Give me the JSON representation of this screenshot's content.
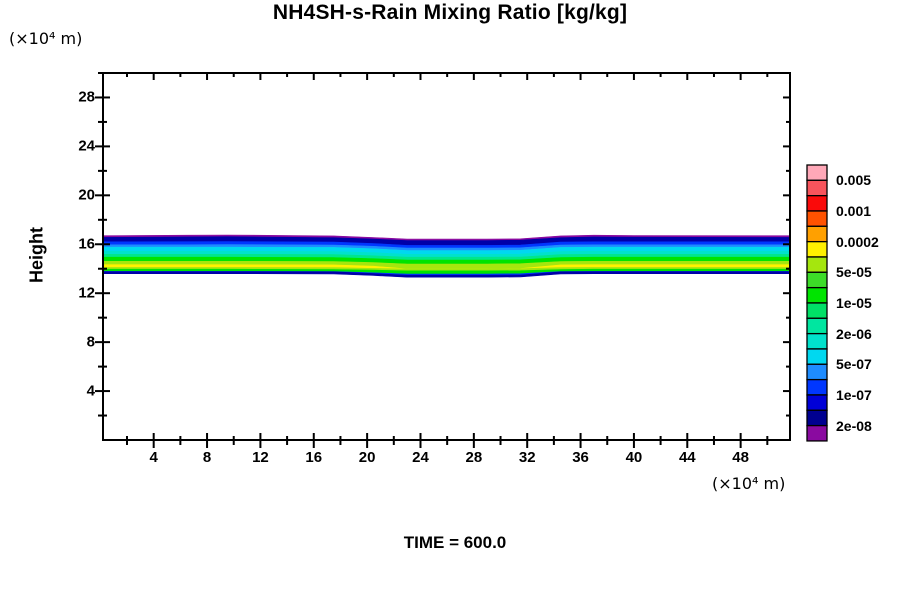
{
  "chart_data": {
    "type": "filled-contour",
    "title": "NH4SH-s-Rain Mixing Ratio [kg/kg]",
    "ylabel": "Height",
    "y_axis_unit": "(×10⁴ m)",
    "x_axis_unit": "(×10⁴ m)",
    "time_label": "TIME = 600.0",
    "xlim": [
      0.2,
      51.7
    ],
    "ylim": [
      0,
      30
    ],
    "xticks": [
      4,
      8,
      12,
      16,
      20,
      24,
      28,
      32,
      36,
      40,
      44,
      48
    ],
    "xticks_minor": [
      2,
      6,
      10,
      14,
      18,
      22,
      26,
      30,
      34,
      38,
      42,
      46,
      50
    ],
    "yticks": [
      4,
      8,
      12,
      16,
      20,
      24,
      28
    ],
    "yticks_minor": [
      2,
      6,
      10,
      14,
      18,
      22,
      26,
      30
    ],
    "grid": false,
    "frame_color": "#000000",
    "colorbar": {
      "position": "right",
      "segment_colors_top_to_bottom": [
        "#FFA8B8",
        "#F8545C",
        "#FA0A0A",
        "#FF5200",
        "#FFA000",
        "#FFF000",
        "#A5E60E",
        "#3CDC28",
        "#00E400",
        "#00E066",
        "#00E6A0",
        "#00E2CC",
        "#00D8F0",
        "#1E8CFF",
        "#0037FF",
        "#0000D7",
        "#000090",
        "#8A0AA0"
      ],
      "boundary_labels_top_to_bottom": [
        "0.005",
        "0.001",
        "0.0002",
        "5e-05",
        "1e-05",
        "2e-06",
        "5e-07",
        "1e-07",
        "2e-08"
      ],
      "label_after_segment": [
        1,
        3,
        5,
        7,
        9,
        11,
        13,
        15,
        17
      ]
    },
    "band": {
      "description": "horizontal rain layer between heights ~13.3 and ~16.8 (x10^4 m) with slight downward dip near x=20-32",
      "x_stations": [
        0.2,
        6.5,
        9.5,
        17.5,
        20.5,
        23,
        29,
        31.5,
        34.5,
        37,
        40,
        51.7
      ],
      "stripes_top_to_bottom": [
        {
          "name": "purple-top-line",
          "color": "#8A0AA0",
          "top": [
            16.7,
            16.74,
            16.76,
            16.68,
            16.55,
            16.42,
            16.42,
            16.45,
            16.68,
            16.74,
            16.72,
            16.7
          ]
        },
        {
          "name": "navy-top",
          "color": "#0000A8",
          "top": [
            16.56,
            16.6,
            16.62,
            16.54,
            16.42,
            16.3,
            16.3,
            16.33,
            16.54,
            16.6,
            16.58,
            16.56
          ]
        },
        {
          "name": "blue-top",
          "color": "#0037FF",
          "top": [
            16.2,
            16.21,
            16.22,
            16.18,
            16.06,
            15.91,
            15.91,
            15.94,
            16.18,
            16.2,
            16.2,
            16.2
          ]
        },
        {
          "name": "sky-blue",
          "color": "#1E8CFF",
          "top": [
            15.96,
            15.96,
            15.97,
            15.94,
            15.83,
            15.69,
            15.69,
            15.71,
            15.94,
            15.96,
            15.96,
            15.96
          ]
        },
        {
          "name": "cyan",
          "color": "#00D8F0",
          "top": [
            15.76,
            15.76,
            15.76,
            15.74,
            15.63,
            15.49,
            15.49,
            15.51,
            15.74,
            15.76,
            15.76,
            15.76
          ]
        },
        {
          "name": "turquoise",
          "color": "#00E2CC",
          "top": [
            15.43,
            15.43,
            15.43,
            15.41,
            15.31,
            15.18,
            15.18,
            15.2,
            15.41,
            15.43,
            15.43,
            15.43
          ]
        },
        {
          "name": "spring-green",
          "color": "#00E68C",
          "top": [
            15.18,
            15.18,
            15.18,
            15.16,
            15.06,
            14.94,
            14.94,
            14.96,
            15.16,
            15.18,
            15.18,
            15.18
          ]
        },
        {
          "name": "green",
          "color": "#00E400",
          "top": [
            14.94,
            14.94,
            14.94,
            14.92,
            14.82,
            14.71,
            14.71,
            14.73,
            14.92,
            14.94,
            14.94,
            14.94
          ]
        },
        {
          "name": "chartreuse-upper",
          "color": "#A5E60E",
          "top": [
            14.61,
            14.61,
            14.61,
            14.59,
            14.5,
            14.39,
            14.39,
            14.41,
            14.59,
            14.61,
            14.61,
            14.61
          ]
        },
        {
          "name": "yellow-core",
          "color": "#FFF200",
          "top": [
            14.33,
            14.33,
            14.33,
            14.31,
            14.21,
            13.99,
            13.99,
            14.01,
            14.31,
            14.33,
            14.33,
            14.33
          ]
        },
        {
          "name": "chartreuse-lower",
          "color": "#A5E60E",
          "top": [
            14.11,
            14.11,
            14.11,
            14.09,
            14.03,
            13.99,
            13.99,
            14.0,
            14.09,
            14.11,
            14.11,
            14.11
          ]
        },
        {
          "name": "green-lower",
          "color": "#00E400",
          "top": [
            13.96,
            13.96,
            13.96,
            13.94,
            13.89,
            13.83,
            13.83,
            13.84,
            13.94,
            13.96,
            13.96,
            13.96
          ]
        },
        {
          "name": "blue-bottom-fringe",
          "color": "#0037FF",
          "top": [
            13.78,
            13.78,
            13.78,
            13.77,
            13.67,
            13.57,
            13.57,
            13.59,
            13.77,
            13.78,
            13.78,
            13.78
          ]
        },
        {
          "name": "navy-bottom-line",
          "color": "#0000A8",
          "top": [
            13.76,
            13.76,
            13.76,
            13.75,
            13.61,
            13.47,
            13.47,
            13.49,
            13.75,
            13.76,
            13.76,
            13.76
          ]
        }
      ],
      "bottom": [
        13.59,
        13.59,
        13.59,
        13.58,
        13.45,
        13.31,
        13.31,
        13.33,
        13.58,
        13.59,
        13.59,
        13.59
      ]
    }
  }
}
